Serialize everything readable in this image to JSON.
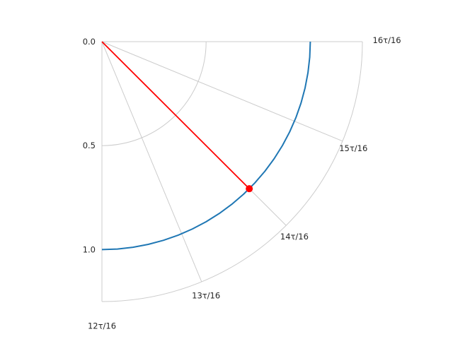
{
  "chart_data": {
    "type": "line",
    "projection": "polar",
    "title": "",
    "theta_tick_labels": [
      "12τ/16",
      "13τ/16",
      "14τ/16",
      "15τ/16",
      "16τ/16"
    ],
    "r_tick_values": [
      0.0,
      0.5,
      1.0
    ],
    "r_tick_labels": [
      "0.0",
      "0.5",
      "1.0"
    ],
    "rlim": [
      0.0,
      1.25
    ],
    "theta_range_tau": [
      0.75,
      1.0
    ],
    "r_axis_inverted": true,
    "grid": true,
    "series": [
      {
        "type": "line",
        "color": "#1f77b4",
        "theta_tau": [
          0.75,
          0.7619,
          0.7738,
          0.7857,
          0.7976,
          0.8095,
          0.8214,
          0.8333,
          0.8452,
          0.8571,
          0.869,
          0.881,
          0.8929,
          0.9048,
          0.9167,
          0.9286,
          0.9405,
          0.9524,
          0.9643,
          0.9762,
          0.9881,
          1.0
        ],
        "r": [
          1.0,
          1.0,
          1.0,
          1.0,
          1.0,
          1.0,
          1.0,
          1.0,
          1.0,
          1.0,
          1.0,
          1.0,
          1.0,
          1.0,
          1.0,
          1.0,
          1.0,
          1.0,
          1.0,
          1.0,
          1.0,
          1.0
        ]
      },
      {
        "type": "line",
        "color": "#ff0000",
        "theta_tau": [
          0.875,
          0.875
        ],
        "r": [
          0.0,
          1.0
        ]
      }
    ],
    "marker": {
      "theta_tau": 0.875,
      "r": 1.0,
      "color": "#ff0000"
    }
  }
}
